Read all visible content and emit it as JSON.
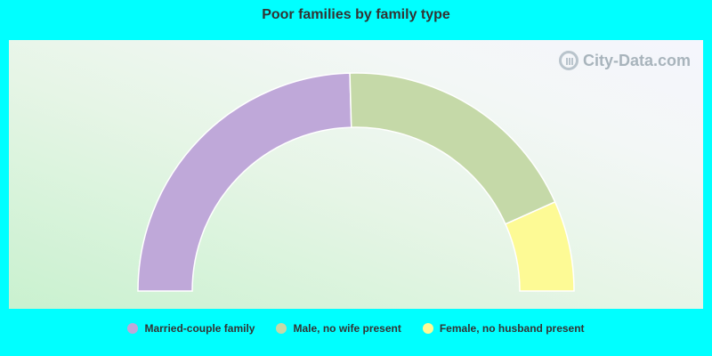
{
  "title": "Poor families by family type",
  "watermark": "City-Data.com",
  "chart_data": {
    "type": "pie",
    "variant": "half-donut",
    "title": "Poor families by family type",
    "categories": [
      "Married-couple family",
      "Male, no wife present",
      "Female, no husband present"
    ],
    "values": [
      49.1,
      37.5,
      13.4
    ],
    "unit": "%",
    "colors": [
      "#bfa8d9",
      "#c5d9a8",
      "#fdfa95"
    ],
    "legend_position": "bottom",
    "grid": false
  }
}
